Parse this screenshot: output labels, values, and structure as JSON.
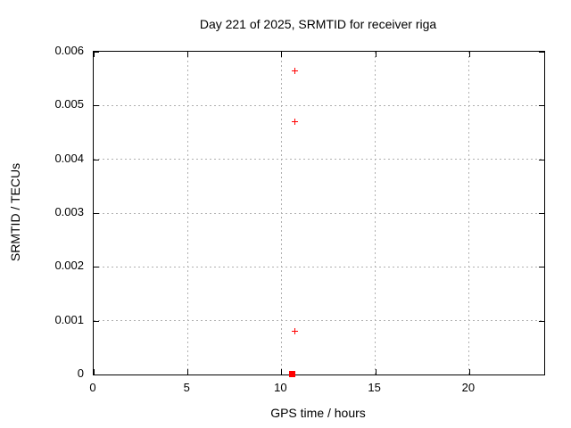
{
  "chart_data": {
    "type": "scatter",
    "title": "Day 221 of 2025, SRMTID for receiver riga",
    "xlabel": "GPS time / hours",
    "ylabel": "SRMTID / TECUs",
    "xlim": [
      0,
      24
    ],
    "ylim": [
      0,
      0.006
    ],
    "xticks": [
      0,
      5,
      10,
      15,
      20
    ],
    "xtick_labels": [
      "0",
      "5",
      "10",
      "15",
      "20"
    ],
    "yticks": [
      0,
      0.001,
      0.002,
      0.003,
      0.004,
      0.005,
      0.006
    ],
    "ytick_labels": [
      "0",
      "0.001",
      "0.002",
      "0.003",
      "0.004",
      "0.005",
      "0.006"
    ],
    "grid": true,
    "grid_style": "dotted",
    "legend": "none",
    "colors": {
      "marker": "#ff0000",
      "grid": "#b0b0b0",
      "border": "#000000",
      "background": "#ffffff"
    },
    "series": [
      {
        "name": "srmtid-points",
        "marker": "plus",
        "color": "#ff0000",
        "points": [
          {
            "x": 10.76,
            "y": 0.00563
          },
          {
            "x": 10.76,
            "y": 0.00469
          },
          {
            "x": 10.76,
            "y": 0.0008
          }
        ]
      },
      {
        "name": "srmtid-dense-cluster-at-zero",
        "marker": "square",
        "color": "#ff0000",
        "points": [
          {
            "x": 10.6,
            "y": 0.0
          }
        ]
      }
    ]
  }
}
